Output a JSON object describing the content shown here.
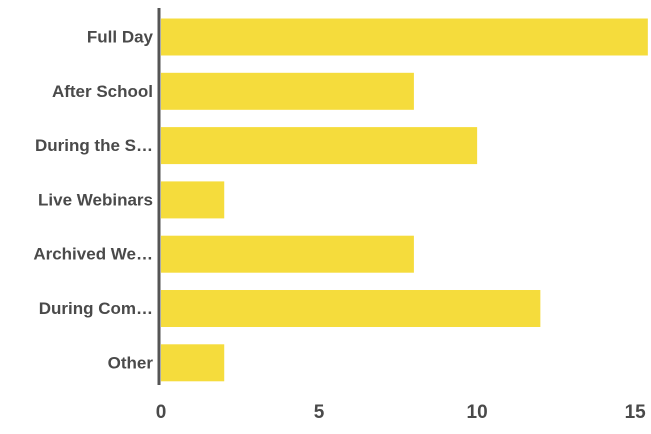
{
  "chart_data": {
    "type": "bar",
    "orientation": "horizontal",
    "categories": [
      "Full Day",
      "After School",
      "During the S…",
      "Live Webinars",
      "Archived We…",
      "During Com…",
      "Other"
    ],
    "values": [
      15.4,
      8,
      10,
      2,
      8,
      12,
      2
    ],
    "x_ticks": [
      "0",
      "5",
      "10",
      "15"
    ],
    "xlim": [
      0,
      15.5
    ],
    "grid": false,
    "colors": {
      "bar": "#F5DC3C",
      "axis": "#555555",
      "text": "#4a4a4a"
    }
  }
}
